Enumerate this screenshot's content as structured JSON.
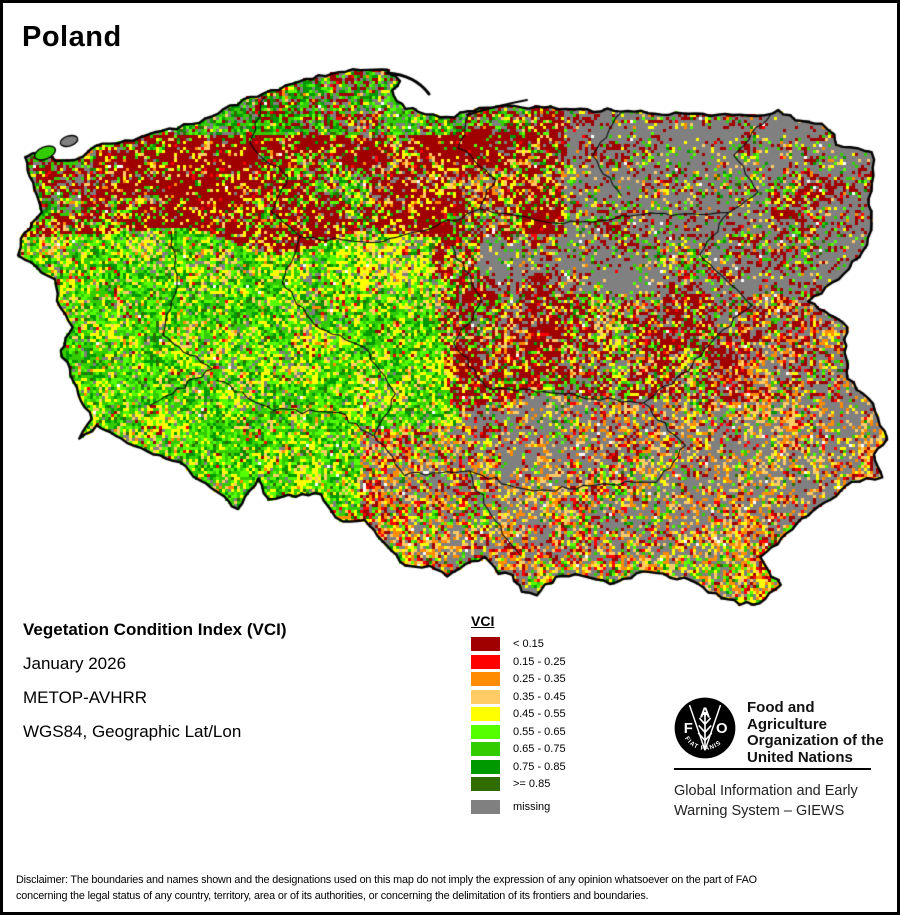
{
  "title": "Poland",
  "info": {
    "heading": "Vegetation Condition Index (VCI)",
    "lines": [
      "January 2026",
      "METOP-AVHRR",
      "WGS84, Geographic Lat/Lon"
    ]
  },
  "legend": {
    "title": "VCI",
    "entries": [
      {
        "label": "< 0.15",
        "color": "#A00000"
      },
      {
        "label": "0.15 - 0.25",
        "color": "#FF0000"
      },
      {
        "label": "0.25 - 0.35",
        "color": "#FF8C00"
      },
      {
        "label": "0.35 - 0.45",
        "color": "#FFCC66"
      },
      {
        "label": "0.45 - 0.55",
        "color": "#FFFF00"
      },
      {
        "label": "0.55 - 0.65",
        "color": "#55FF00"
      },
      {
        "label": "0.65 - 0.75",
        "color": "#33CC00"
      },
      {
        "label": "0.75 - 0.85",
        "color": "#009900"
      },
      {
        "label": ">= 0.85",
        "color": "#2E6B00"
      }
    ],
    "missing": {
      "label": "missing",
      "color": "#808080"
    }
  },
  "fao": {
    "org_lines": [
      "Food and Agriculture",
      "Organization of the",
      "United Nations"
    ],
    "giews_lines": [
      "Global Information and Early",
      "Warning System – GIEWS"
    ],
    "seal_top": "A",
    "seal_left": "F",
    "seal_right": "O",
    "seal_motto": "FIAT   PANIS"
  },
  "disclaimer_lines": [
    "Disclaimer: The boundaries and names shown and the designations used on this map do not imply the expression of any opinion whatsoever on the part of FAO",
    "concerning the legal status of any country, territory, area or of its authorities, or concerning the delimitation of its frontiers and boundaries."
  ]
}
